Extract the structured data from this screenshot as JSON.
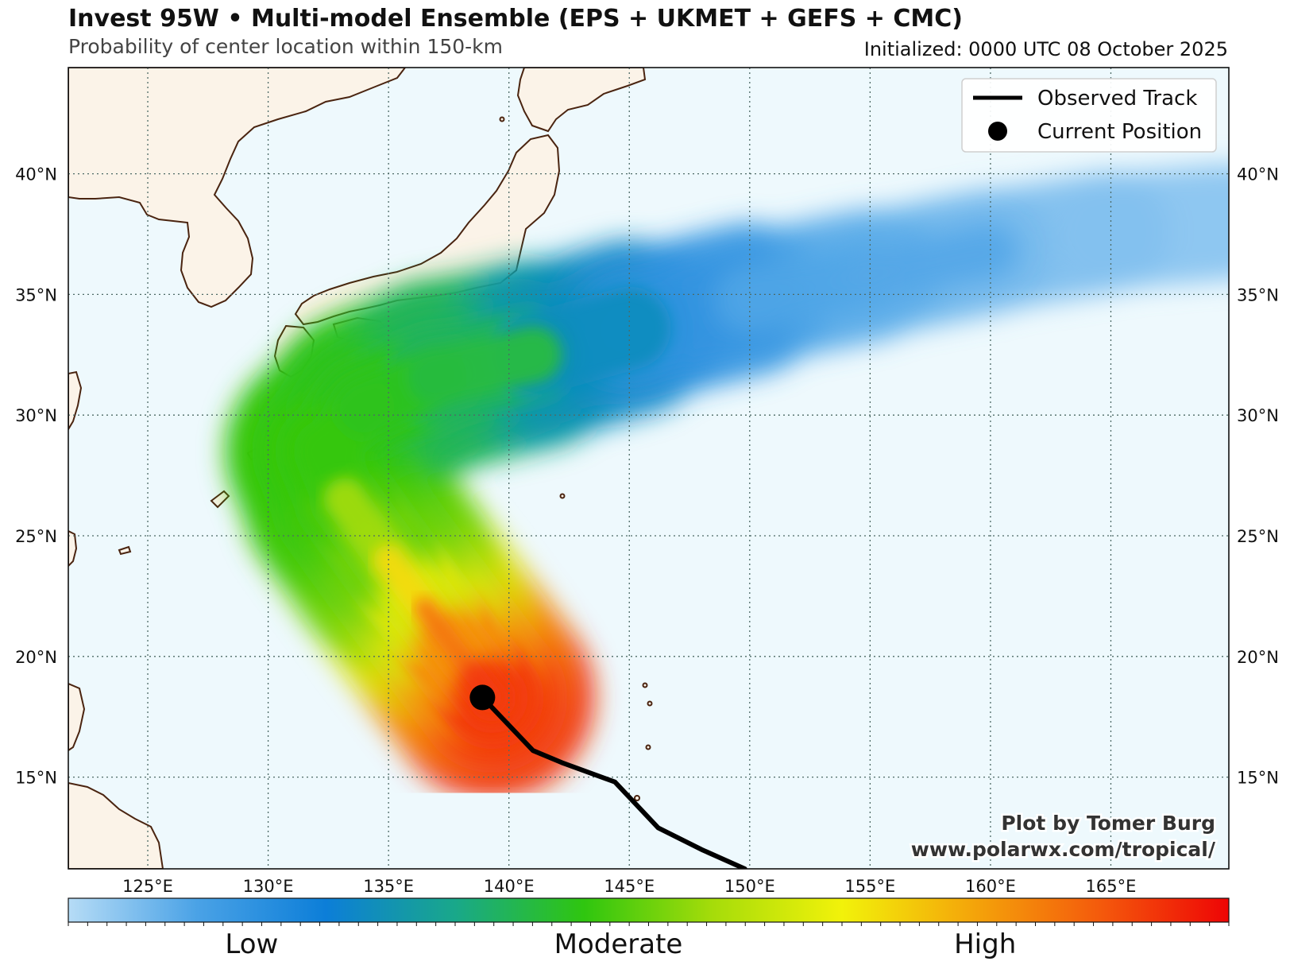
{
  "header": {
    "title": "Invest 95W • Multi-model Ensemble (EPS + UKMET + GEFS + CMC)",
    "subtitle": "Probability of center location within 150-km",
    "initialized": "Initialized: 0000 UTC 08 October 2025"
  },
  "map": {
    "extent": {
      "lon": [
        121.7,
        169.9
      ],
      "lat": [
        11.2,
        44.4
      ]
    },
    "lat_labels": [
      "40°N",
      "35°N",
      "30°N",
      "25°N",
      "20°N",
      "15°N"
    ],
    "lon_labels": [
      "125°E",
      "130°E",
      "135°E",
      "140°E",
      "145°E",
      "150°E",
      "155°E",
      "160°E",
      "165°E"
    ],
    "ocean_color": "#eef9fd",
    "land_color": "#fbf3e8",
    "coast_color": "#4a2410",
    "grid": "dotted"
  },
  "legend": {
    "observed_track": "Observed Track",
    "current_position": "Current Position",
    "placement": "top-right"
  },
  "track": [
    {
      "lon": 149.8,
      "lat": 11.2
    },
    {
      "lon": 148.0,
      "lat": 12.0
    },
    {
      "lon": 146.2,
      "lat": 12.9
    },
    {
      "lon": 144.4,
      "lat": 14.8
    },
    {
      "lon": 142.2,
      "lat": 15.6
    },
    {
      "lon": 141.0,
      "lat": 16.1
    },
    {
      "lon": 138.9,
      "lat": 18.3
    }
  ],
  "current_position": {
    "lon": 138.9,
    "lat": 18.3
  },
  "probability_axis": [
    {
      "lon": 139.3,
      "lat": 18.3,
      "p": 0.97
    },
    {
      "lon": 138.0,
      "lat": 20.0,
      "p": 0.92
    },
    {
      "lon": 136.5,
      "lat": 22.0,
      "p": 0.78
    },
    {
      "lon": 135.0,
      "lat": 24.0,
      "p": 0.6
    },
    {
      "lon": 133.2,
      "lat": 26.5,
      "p": 0.48
    },
    {
      "lon": 132.4,
      "lat": 28.5,
      "p": 0.45
    },
    {
      "lon": 134.0,
      "lat": 30.3,
      "p": 0.45
    },
    {
      "lon": 137.0,
      "lat": 31.6,
      "p": 0.43
    },
    {
      "lon": 141.0,
      "lat": 32.5,
      "p": 0.36
    },
    {
      "lon": 145.0,
      "lat": 33.6,
      "p": 0.24
    },
    {
      "lon": 150.0,
      "lat": 34.8,
      "p": 0.14
    },
    {
      "lon": 155.0,
      "lat": 35.8,
      "p": 0.1
    },
    {
      "lon": 160.0,
      "lat": 36.8,
      "p": 0.08
    },
    {
      "lon": 165.0,
      "lat": 37.6,
      "p": 0.06
    },
    {
      "lon": 169.9,
      "lat": 38.0,
      "p": 0.05
    }
  ],
  "colorbar": {
    "colors": [
      "#b6dcf6",
      "#4aa2e6",
      "#0c7ed8",
      "#19a88a",
      "#2fc60f",
      "#a6dc0a",
      "#f2f20a",
      "#f4a60a",
      "#f45a0c",
      "#ee0505"
    ],
    "labels": [
      {
        "text": "Low",
        "pos": 0.158
      },
      {
        "text": "Moderate",
        "pos": 0.474
      },
      {
        "text": "High",
        "pos": 0.79
      }
    ]
  },
  "credit": {
    "line1": "Plot by Tomer Burg",
    "line2": "www.polarwx.com/tropical/"
  }
}
